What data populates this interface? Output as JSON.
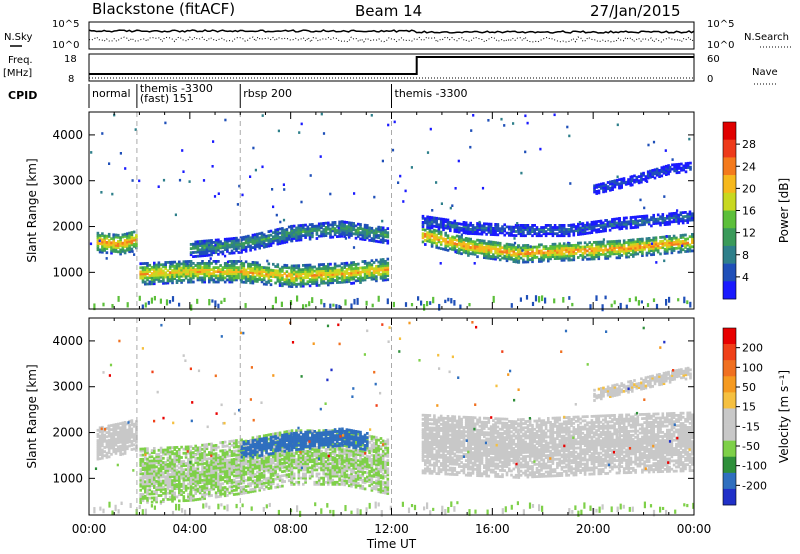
{
  "header": {
    "station": "Blackstone (fitACF)",
    "beam": "Beam 14",
    "date": "27/Jan/2015"
  },
  "param_labels": {
    "nsky": "N.Sky",
    "nsearch": "N.Search",
    "freq_line1": "Freq.",
    "freq_line2": "[MHz]",
    "nave": "Nave",
    "cpid": "CPID"
  },
  "noise_axes": {
    "left_ticks": [
      "10^5",
      "10^0"
    ],
    "right_ticks": [
      "10^5",
      "10^0"
    ]
  },
  "freq_axes": {
    "left_ticks": [
      "18",
      "8"
    ],
    "right_ticks": [
      "60",
      "0"
    ]
  },
  "cpid_segments": [
    {
      "label": "normal",
      "start_hour": 0.0,
      "end_hour": 1.9
    },
    {
      "label": "themis -3300\n(fast) 151",
      "start_hour": 1.9,
      "end_hour": 6.0
    },
    {
      "label": "rbsp 200",
      "start_hour": 6.0,
      "end_hour": 12.0
    },
    {
      "label": "themis -3300",
      "start_hour": 12.0,
      "end_hour": 24.0
    }
  ],
  "chart_data": [
    {
      "type": "heatmap",
      "panel": "power",
      "ylabel": "Slant Range [km]",
      "xlabel": "",
      "xlim": [
        0,
        24
      ],
      "ylim": [
        200,
        4500
      ],
      "yticks": [
        "1000",
        "2000",
        "3000",
        "4000"
      ],
      "colorbar": {
        "label": "Power [dB]",
        "ticks": [
          "4",
          "8",
          "12",
          "16",
          "20",
          "24",
          "28"
        ],
        "colors": [
          "#1a1aff",
          "#1f4fb8",
          "#2e7f8a",
          "#3a9a5a",
          "#5cbf3a",
          "#c8d820",
          "#f6b81c",
          "#f47a1c",
          "#ee3a1a",
          "#e00000"
        ],
        "range": [
          2,
          32
        ]
      },
      "bands": [
        {
          "name": "",
          "x": [
            0.3,
            1.2,
            1.9
          ],
          "y": [
            1700,
            1650,
            1750
          ],
          "width": 220,
          "value": 24
        },
        {
          "name": "",
          "x": [
            2.0,
            4.0,
            6.0,
            8.0,
            10.0,
            11.8
          ],
          "y": [
            1000,
            1050,
            1050,
            950,
            1000,
            1100
          ],
          "width": 230,
          "value": 22
        },
        {
          "name": "",
          "x": [
            4.0,
            6.0,
            8.0,
            10.0,
            11.8
          ],
          "y": [
            1550,
            1650,
            1900,
            2000,
            1850
          ],
          "width": 180,
          "value": 12
        },
        {
          "name": "",
          "x": [
            13.2,
            15.0,
            17.0,
            19.0,
            21.0,
            23.9
          ],
          "y": [
            1850,
            1600,
            1450,
            1500,
            1550,
            1700
          ],
          "width": 200,
          "value": 24
        },
        {
          "name": "",
          "x": [
            13.2,
            15.0,
            17.0,
            19.0,
            21.0,
            23.9
          ],
          "y": [
            2150,
            2000,
            1950,
            1950,
            2100,
            2250
          ],
          "width": 120,
          "value": 8
        },
        {
          "name": "",
          "x": [
            20.0,
            21.5,
            23.0,
            23.9
          ],
          "y": [
            2850,
            3050,
            3300,
            3350
          ],
          "width": 110,
          "value": 6
        }
      ]
    },
    {
      "type": "heatmap",
      "panel": "velocity",
      "ylabel": "Slant Range [km]",
      "xlabel": "Time UT",
      "xlim": [
        0,
        24
      ],
      "ylim": [
        200,
        4500
      ],
      "yticks": [
        "1000",
        "2000",
        "3000",
        "4000"
      ],
      "xticks": [
        "00:00",
        "04:00",
        "08:00",
        "12:00",
        "16:00",
        "20:00",
        "00:00"
      ],
      "colorbar": {
        "label": "Velocity [m s⁻¹]",
        "ticks": [
          "200",
          "100",
          "50",
          "15",
          "-15",
          "-50",
          "-100",
          "-200"
        ],
        "colors": [
          "#2030c8",
          "#2f6fbf",
          "#2e8f3a",
          "#7ed048",
          "#c8c8c8",
          "#c8c8c8",
          "#f5c040",
          "#f59a20",
          "#f07020",
          "#f04018",
          "#e80000"
        ],
        "range": [
          -250,
          250
        ]
      },
      "bands": [
        {
          "name": "",
          "x": [
            0.3,
            1.2,
            1.9
          ],
          "y": [
            1800,
            1900,
            2000
          ],
          "width": 350,
          "value": -40
        },
        {
          "name": "",
          "x": [
            2.0,
            4.0,
            6.0,
            8.0,
            10.0,
            11.8
          ],
          "y": [
            1100,
            1150,
            1300,
            1500,
            1500,
            1300
          ],
          "width": 600,
          "value": -70
        },
        {
          "name": "",
          "x": [
            6.0,
            8.0,
            10.0,
            11.0
          ],
          "y": [
            1650,
            1850,
            1950,
            1850
          ],
          "width": 200,
          "value": -180
        },
        {
          "name": "",
          "x": [
            13.2,
            15.0,
            17.0,
            19.0,
            21.0,
            23.9
          ],
          "y": [
            1800,
            1750,
            1700,
            1750,
            1800,
            1850
          ],
          "width": 650,
          "value": 0
        },
        {
          "name": "",
          "x": [
            20.0,
            21.5,
            23.0,
            23.9
          ],
          "y": [
            2850,
            3050,
            3250,
            3350
          ],
          "width": 120,
          "value": 5
        }
      ]
    }
  ]
}
